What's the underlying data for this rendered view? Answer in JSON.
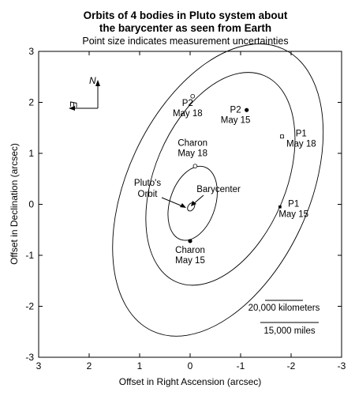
{
  "chart_data": {
    "type": "scatter",
    "title": "Orbits of 4 bodies in Pluto system about",
    "title_line2": "the barycenter as seen from Earth",
    "subtitle": "Point size indicates measurement uncertainties",
    "xlabel": "Offset in Right Ascension (arcsec)",
    "ylabel": "Offset in Declination (arcsec)",
    "xlim": [
      3,
      -3
    ],
    "ylim": [
      -3,
      3
    ],
    "x_ticks": [
      3,
      2,
      1,
      0,
      -1,
      -2,
      -3
    ],
    "x_tick_labels": [
      "3",
      "2",
      "1",
      "0",
      "-1",
      "-2",
      "-3"
    ],
    "y_ticks": [
      3,
      2,
      1,
      0,
      -1,
      -2,
      -3
    ],
    "y_tick_labels": [
      "3",
      "2",
      "1",
      "0",
      "-1",
      "-2",
      "-3"
    ],
    "grid": false,
    "orbits": [
      {
        "body": "Pluto",
        "center": [
          -0.02,
          -0.05
        ],
        "semi_axes": [
          0.06,
          0.09
        ],
        "tilt_deg": 35
      },
      {
        "body": "Charon",
        "center": [
          -0.05,
          0.02
        ],
        "semi_axes": [
          0.45,
          0.75
        ],
        "tilt_deg": 18
      },
      {
        "body": "P2",
        "center": [
          -0.6,
          0.5
        ],
        "semi_axes": [
          1.3,
          2.2
        ],
        "tilt_deg": 23
      },
      {
        "body": "P1",
        "center": [
          -0.55,
          0.28
        ],
        "semi_axes": [
          1.8,
          3.05
        ],
        "tilt_deg": 25
      }
    ],
    "points": [
      {
        "label_line1": "Charon",
        "label_line2": "May 18",
        "x": -0.1,
        "y": 0.75,
        "marker": "open-circle",
        "label_x": -0.05,
        "label_y": 1.15
      },
      {
        "label_line1": "Charon",
        "label_line2": "May 15",
        "x": 0.0,
        "y": -0.72,
        "marker": "filled-circle",
        "label_x": 0.0,
        "label_y": -0.95
      },
      {
        "label_line1": "P2",
        "label_line2": "May 18",
        "x": -0.05,
        "y": 2.12,
        "marker": "open-circle",
        "label_x": 0.05,
        "label_y": 1.93
      },
      {
        "label_line1": "P2",
        "label_line2": "May 15",
        "x": -1.12,
        "y": 1.85,
        "marker": "filled-circle",
        "label_x": -0.9,
        "label_y": 1.8
      },
      {
        "label_line1": "P1",
        "label_line2": "May 18",
        "x": -1.82,
        "y": 1.33,
        "marker": "open-square",
        "label_x": -2.2,
        "label_y": 1.33
      },
      {
        "label_line1": "P1",
        "label_line2": "May 15",
        "x": -1.78,
        "y": -0.05,
        "marker": "filled-square",
        "label_x": -2.05,
        "label_y": -0.05
      }
    ],
    "annotations": {
      "plutos_orbit_line1": "Pluto's",
      "plutos_orbit_line2": "Orbit",
      "barycenter": "Barycenter",
      "compass_north": "N",
      "compass_east": "E"
    },
    "scale_bars": [
      {
        "label": "20,000 kilometers"
      },
      {
        "label": "15,000 miles"
      }
    ]
  }
}
